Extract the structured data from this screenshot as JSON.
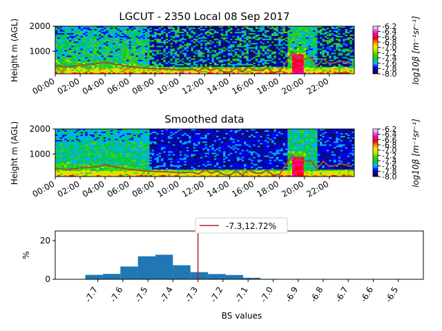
{
  "chart_data": [
    {
      "type": "heatmap",
      "title": "LGCUT - 2350 Local 08 Sep 2017",
      "ylabel": "Height m (AGL)",
      "ylim": [
        100,
        2000
      ],
      "yticks": [
        "1000",
        "2000"
      ],
      "xticks": [
        "00:00",
        "02:00",
        "04:00",
        "06:00",
        "08:00",
        "10:00",
        "12:00",
        "14:00",
        "16:00",
        "18:00",
        "20:00",
        "22:00"
      ],
      "colorbar": {
        "label": "log10β [m⁻¹sr⁻¹]",
        "ticks": [
          "-6.2",
          "-6.4",
          "-6.6",
          "-6.8",
          "-7.0",
          "-7.2",
          "-7.4",
          "-7.6",
          "-7.8",
          "-8.0"
        ],
        "range": [
          -8.0,
          -6.2
        ]
      },
      "overlay_line": {
        "color": "#a0522d",
        "x_hours": [
          0,
          1,
          2,
          3,
          4,
          5,
          6,
          7,
          8,
          9,
          10,
          11,
          11.5,
          12,
          12.5,
          13,
          13.5,
          14,
          14.5,
          15,
          15.5,
          16,
          16.5,
          17,
          17.5,
          18,
          18.5,
          19,
          19.5,
          20,
          20.5,
          21,
          21.5,
          22,
          22.5,
          23,
          23.8
        ],
        "y_m": [
          420,
          380,
          440,
          480,
          560,
          470,
          380,
          330,
          300,
          290,
          250,
          280,
          200,
          380,
          230,
          330,
          180,
          140,
          330,
          170,
          360,
          250,
          220,
          350,
          150,
          180,
          550,
          950,
          800,
          700,
          750,
          400,
          700,
          500,
          550,
          600,
          500
        ]
      }
    },
    {
      "type": "heatmap",
      "title": "Smoothed data",
      "ylabel": "Height m (AGL)",
      "ylim": [
        100,
        2000
      ],
      "yticks": [
        "1000",
        "2000"
      ],
      "xticks": [
        "00:00",
        "02:00",
        "04:00",
        "06:00",
        "08:00",
        "10:00",
        "12:00",
        "14:00",
        "16:00",
        "18:00",
        "20:00",
        "22:00"
      ],
      "colorbar": {
        "label": "log10β [m⁻¹sr⁻¹]",
        "ticks": [
          "-6.2",
          "-6.4",
          "-6.6",
          "-6.8",
          "-7.0",
          "-7.2",
          "-7.4",
          "-7.6",
          "-7.8",
          "-8.0"
        ],
        "range": [
          -8.0,
          -6.2
        ]
      }
    },
    {
      "type": "bar",
      "ylabel": "%",
      "xlabel": "BS values",
      "ylim": [
        0,
        25
      ],
      "yticks": [
        "0",
        "20"
      ],
      "xticks": [
        "-7.7",
        "-7.6",
        "-7.5",
        "-7.4",
        "-7.3",
        "-7.2",
        "-7.1",
        "-7.0",
        "-6.9",
        "-6.8",
        "-6.7",
        "-6.6",
        "-6.5"
      ],
      "bin_edges": [
        -7.75,
        -7.68,
        -7.61,
        -7.54,
        -7.47,
        -7.4,
        -7.33,
        -7.26,
        -7.19,
        -7.12,
        -7.05,
        -6.98,
        -6.91,
        -6.84,
        -6.77,
        -6.7,
        -6.63,
        -6.56,
        -6.49
      ],
      "values": [
        2.3,
        2.8,
        6.6,
        11.9,
        12.7,
        7.3,
        3.7,
        2.7,
        2.2,
        0.8,
        0.2,
        0.1,
        0.05,
        0.03,
        0.02,
        0.01,
        0.01,
        0.01
      ],
      "bar_color": "#1f77b4",
      "vline": {
        "x": -7.3,
        "color": "#b22222"
      },
      "legend": {
        "label": "-7.3,12.72%",
        "placement": "top-center"
      }
    }
  ]
}
